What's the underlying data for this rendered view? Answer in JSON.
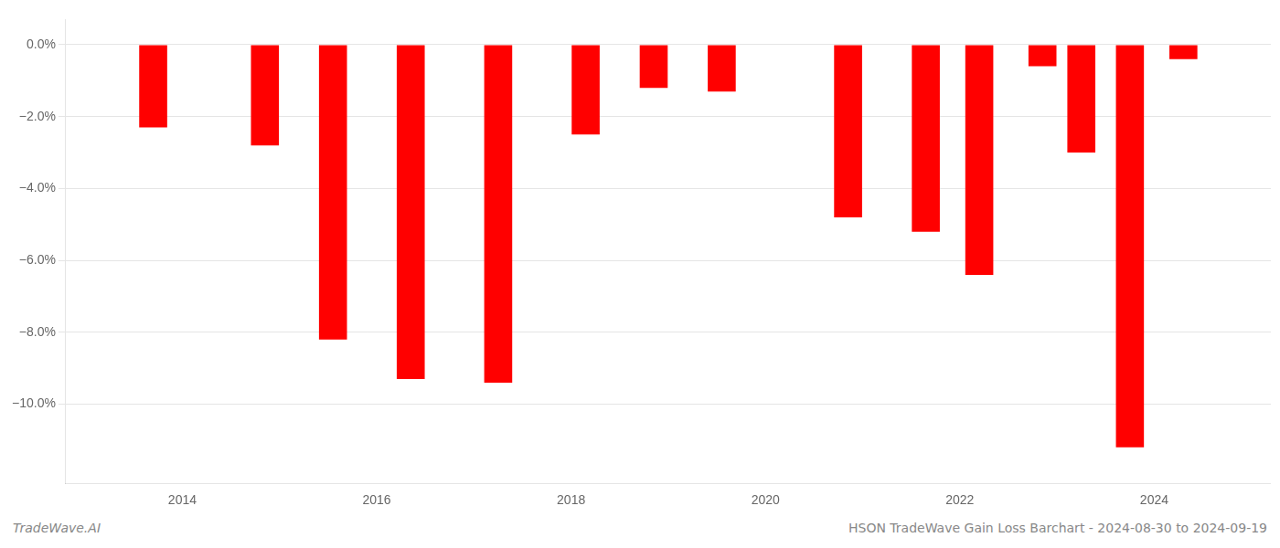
{
  "chart_data": {
    "type": "bar",
    "x": [
      2013.7,
      2014.85,
      2015.55,
      2016.35,
      2017.25,
      2018.15,
      2018.85,
      2019.55,
      2020.85,
      2021.65,
      2022.2,
      2022.85,
      2023.25,
      2023.75,
      2024.3
    ],
    "values": [
      -2.3,
      -2.8,
      -8.2,
      -9.3,
      -9.4,
      -2.5,
      -1.2,
      -1.3,
      -4.8,
      -5.2,
      -6.4,
      -0.6,
      -3.0,
      -11.2,
      -0.4
    ],
    "color": "#ff0000",
    "xlim": [
      2012.8,
      2025.2
    ],
    "xticks": [
      2014,
      2016,
      2018,
      2020,
      2022,
      2024
    ],
    "ylim": [
      -12.2,
      0.7
    ],
    "yticks": [
      {
        "value": 0.0,
        "label": "0.0%"
      },
      {
        "value": -2.0,
        "label": "−2.0%"
      },
      {
        "value": -4.0,
        "label": "−4.0%"
      },
      {
        "value": -6.0,
        "label": "−6.0%"
      },
      {
        "value": -8.0,
        "label": "−8.0%"
      },
      {
        "value": -10.0,
        "label": "−10.0%"
      }
    ],
    "grid": "y",
    "annotations": [
      "TradeWave.AI",
      "HSON TradeWave Gain Loss Barchart - 2024-08-30 to 2024-09-19"
    ]
  }
}
